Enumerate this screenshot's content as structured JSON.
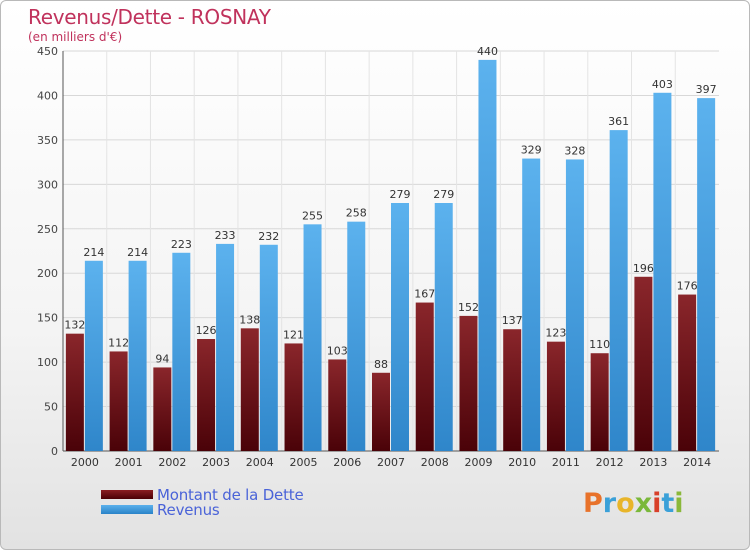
{
  "chart_data": {
    "type": "bar",
    "title": "Revenus/Dette - ROSNAY",
    "subtitle": "(en milliers d'€)",
    "categories": [
      "2000",
      "2001",
      "2002",
      "2003",
      "2004",
      "2005",
      "2006",
      "2007",
      "2008",
      "2009",
      "2010",
      "2011",
      "2012",
      "2013",
      "2014"
    ],
    "series": [
      {
        "name": "Montant de la Dette",
        "color": "#6e1419",
        "values": [
          132,
          112,
          94,
          126,
          138,
          121,
          103,
          88,
          167,
          152,
          137,
          123,
          110,
          196,
          176
        ]
      },
      {
        "name": "Revenus",
        "color": "#4aa3e3",
        "values": [
          214,
          214,
          223,
          233,
          232,
          255,
          258,
          279,
          279,
          440,
          329,
          328,
          361,
          403,
          397
        ]
      }
    ],
    "ylim": [
      0,
      450
    ],
    "yticks": [
      0,
      50,
      100,
      150,
      200,
      250,
      300,
      350,
      400,
      450
    ],
    "grid": true,
    "legend_position": "bottom-left"
  },
  "legend": {
    "dette_label": "Montant de la Dette",
    "revenus_label": "Revenus"
  },
  "logo": {
    "text": [
      "P",
      "r",
      "o",
      "x",
      "i",
      "t",
      "i"
    ],
    "colors": [
      "#e8722a",
      "#3aa0d8",
      "#e8b52a",
      "#7ab83a",
      "#d8402a",
      "#3aa0d8",
      "#8ab83a"
    ]
  }
}
